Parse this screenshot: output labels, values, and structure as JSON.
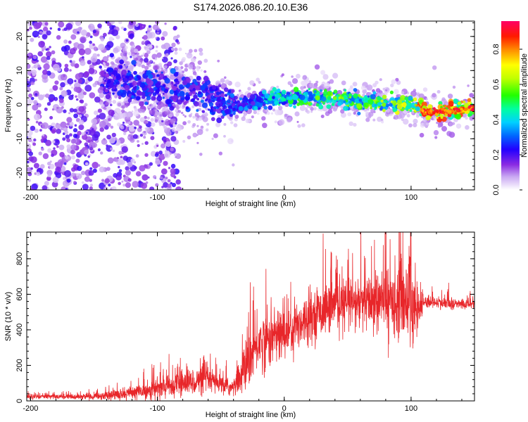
{
  "title": "S174.2026.086.20.10.E36",
  "chart_data": [
    {
      "type": "heatmap",
      "name": "spectrogram",
      "xlabel": "Height of straight line (km)",
      "ylabel": "Frequency (Hz)",
      "xlim": [
        -203,
        150
      ],
      "ylim": [
        -25,
        24.5
      ],
      "xticks": [
        -200,
        -100,
        0,
        100
      ],
      "xtick_labels": [
        "-200",
        "-100",
        "0",
        "100"
      ],
      "yticks": [
        -20,
        -10,
        0,
        10,
        20
      ],
      "ytick_labels": [
        "-20",
        "-10",
        "0",
        "10",
        "20"
      ],
      "colorbar": {
        "label": "Normalized spectral amplitude",
        "range": [
          0,
          0.96
        ],
        "ticks": [
          0.0,
          0.2,
          0.4,
          0.6,
          0.8
        ],
        "tick_labels": [
          "0.0",
          "0.2",
          "0.4",
          "0.6",
          "0.8"
        ],
        "colormap": "rainbow"
      },
      "ridge": {
        "x": [
          -140,
          -120,
          -100,
          -80,
          -60,
          -45,
          -30,
          -20,
          0,
          20,
          40,
          60,
          80,
          100,
          110,
          130,
          150
        ],
        "freq": [
          7,
          6,
          5,
          4,
          3,
          -1,
          0,
          1,
          2,
          2,
          2,
          1,
          0.5,
          0,
          -2,
          -2,
          -1
        ],
        "amplitude": [
          0.25,
          0.3,
          0.3,
          0.3,
          0.3,
          0.3,
          0.35,
          0.4,
          0.5,
          0.55,
          0.6,
          0.6,
          0.65,
          0.7,
          0.95,
          0.9,
          0.75
        ]
      }
    },
    {
      "type": "line",
      "name": "snr",
      "xlabel": "Height of straight line (km)",
      "ylabel": "SNR (10 * v/v)",
      "xlim": [
        -203,
        150
      ],
      "ylim": [
        0,
        950
      ],
      "xticks": [
        -200,
        -100,
        0,
        100
      ],
      "xtick_labels": [
        "-200",
        "-100",
        "0",
        "100"
      ],
      "yticks": [
        0,
        200,
        400,
        600,
        800
      ],
      "ytick_labels": [
        "0",
        "200",
        "400",
        "600",
        "800"
      ],
      "line_color": "#e8262a",
      "envelope": {
        "x": [
          -203,
          -180,
          -150,
          -120,
          -100,
          -80,
          -60,
          -50,
          -40,
          -30,
          -20,
          0,
          20,
          40,
          60,
          80,
          95,
          100,
          105,
          110,
          130,
          150
        ],
        "mean": [
          25,
          25,
          25,
          45,
          70,
          100,
          120,
          90,
          70,
          200,
          330,
          380,
          480,
          540,
          550,
          560,
          580,
          560,
          500,
          560,
          545,
          545
        ],
        "spread": [
          12,
          12,
          15,
          35,
          50,
          60,
          60,
          45,
          40,
          120,
          140,
          130,
          110,
          120,
          130,
          150,
          200,
          250,
          140,
          30,
          25,
          25
        ]
      }
    }
  ]
}
